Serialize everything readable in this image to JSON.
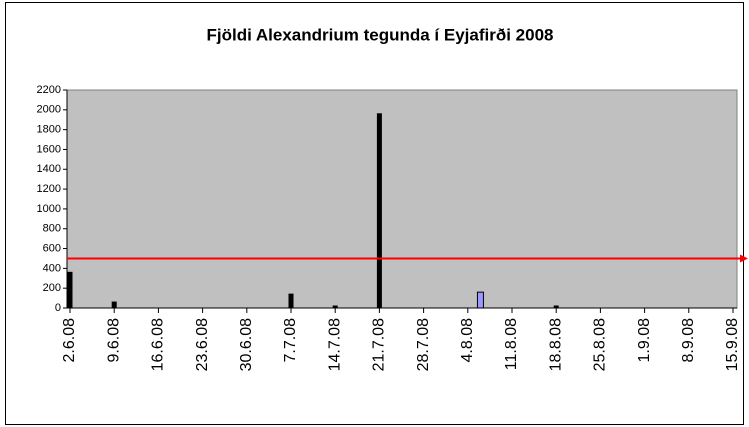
{
  "chart_data": {
    "type": "bar",
    "title": "Fjöldi Alexandrium tegunda í Eyjafirði 2008",
    "x": [
      "2008-06-02",
      "2008-06-09",
      "2008-07-07",
      "2008-07-14",
      "2008-07-21",
      "2008-08-06",
      "2008-08-18"
    ],
    "values": [
      360,
      60,
      140,
      20,
      1960,
      160,
      20
    ],
    "colors": [
      "#000000",
      "#000000",
      "#000000",
      "#000000",
      "#000000",
      "#9999ff",
      "#000000"
    ],
    "ylim": [
      0,
      2200
    ],
    "yticks": [
      0,
      200,
      400,
      600,
      800,
      1000,
      1200,
      1400,
      1600,
      1800,
      2000,
      2200
    ],
    "xlim": [
      "2008-06-02",
      "2008-09-15"
    ],
    "xticks": [
      {
        "value": "2008-06-02",
        "label": "2.6.08"
      },
      {
        "value": "2008-06-09",
        "label": "9.6.08"
      },
      {
        "value": "2008-06-16",
        "label": "16.6.08"
      },
      {
        "value": "2008-06-23",
        "label": "23.6.08"
      },
      {
        "value": "2008-06-30",
        "label": "30.6.08"
      },
      {
        "value": "2008-07-07",
        "label": "7.7.08"
      },
      {
        "value": "2008-07-14",
        "label": "14.7.08"
      },
      {
        "value": "2008-07-21",
        "label": "21.7.08"
      },
      {
        "value": "2008-07-28",
        "label": "28.7.08"
      },
      {
        "value": "2008-08-04",
        "label": "4.8.08"
      },
      {
        "value": "2008-08-11",
        "label": "11.8.08"
      },
      {
        "value": "2008-08-18",
        "label": "18.8.08"
      },
      {
        "value": "2008-08-25",
        "label": "25.8.08"
      },
      {
        "value": "2008-09-01",
        "label": "1.9.08"
      },
      {
        "value": "2008-09-08",
        "label": "8.9.08"
      },
      {
        "value": "2008-09-15",
        "label": "15.9.08"
      }
    ],
    "plot_background": "#c0c0c0",
    "reference_line": {
      "value": 500,
      "color": "#ff0000"
    }
  }
}
